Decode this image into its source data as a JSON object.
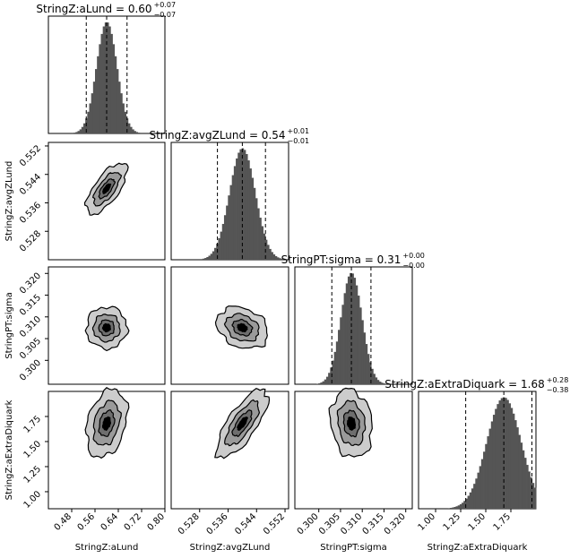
{
  "chart_data": {
    "type": "corner",
    "parameters": [
      {
        "name": "StringZ:aLund",
        "label": "StringZ:aLund",
        "range": [
          0.4,
          0.8
        ],
        "ticks": [
          "0.48",
          "0.56",
          "0.64",
          "0.72",
          "0.80"
        ],
        "tick_values": [
          0.48,
          0.56,
          0.64,
          0.72,
          0.8
        ],
        "title_main": "StringZ:aLund = 0.60",
        "title_plus": "+0.07",
        "title_minus": "−0.07",
        "median": 0.6,
        "q16": 0.53,
        "q84": 0.67,
        "sigma": 0.035
      },
      {
        "name": "StringZ:avgZLund",
        "label": "StringZ:avgZLund",
        "range": [
          0.52,
          0.553
        ],
        "ticks": [
          "0.528",
          "0.536",
          "0.544",
          "0.552"
        ],
        "tick_values": [
          0.528,
          0.536,
          0.544,
          0.552
        ],
        "title_main": "StringZ:avgZLund = 0.54",
        "title_plus": "+0.01",
        "title_minus": "−0.01",
        "median": 0.54,
        "q16": 0.533,
        "q84": 0.5465,
        "sigma": 0.0036
      },
      {
        "name": "StringPT:sigma",
        "label": "StringPT:sigma",
        "range": [
          0.2945,
          0.3215
        ],
        "ticks": [
          "0.300",
          "0.305",
          "0.310",
          "0.315",
          "0.320"
        ],
        "tick_values": [
          0.3,
          0.305,
          0.31,
          0.315,
          0.32
        ],
        "title_main": "StringPT:sigma = 0.31",
        "title_plus": "+0.00",
        "title_minus": "−0.00",
        "median": 0.3075,
        "q16": 0.303,
        "q84": 0.312,
        "sigma": 0.0024
      },
      {
        "name": "StringZ:aExtraDiquark",
        "label": "StringZ:aExtraDiquark",
        "range": [
          0.83,
          2.0
        ],
        "ticks": [
          "1.00",
          "1.25",
          "1.50",
          "1.75"
        ],
        "tick_values": [
          1.0,
          1.25,
          1.5,
          1.75
        ],
        "title_main": "StringZ:aExtraDiquark = 1.68",
        "title_plus": "+0.28",
        "title_minus": "−0.38",
        "median": 1.68,
        "q16": 1.3,
        "q84": 1.96,
        "sigma": 0.17
      }
    ],
    "pairs": [
      {
        "x": 0,
        "y": 1,
        "rho": 0.7
      },
      {
        "x": 0,
        "y": 2,
        "rho": 0.0
      },
      {
        "x": 1,
        "y": 2,
        "rho": -0.25
      },
      {
        "x": 0,
        "y": 3,
        "rho": 0.3
      },
      {
        "x": 1,
        "y": 3,
        "rho": 0.75
      },
      {
        "x": 2,
        "y": 3,
        "rho": -0.15
      }
    ],
    "contour_levels": [
      2.0,
      1.3,
      0.75
    ],
    "colors": {
      "hist": "#555555",
      "contour_outer": "#cccccc",
      "contour_mid": "#9a9a9a",
      "contour_inner": "#6e6e6e",
      "core": "#000000",
      "line": "#000000"
    }
  }
}
